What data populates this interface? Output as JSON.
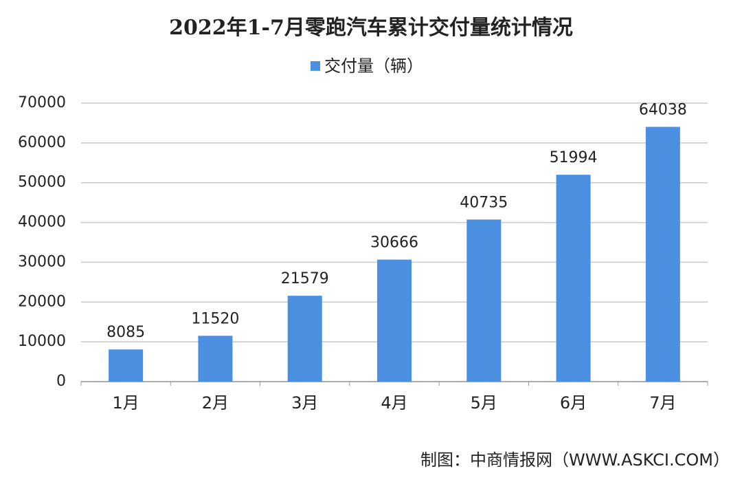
{
  "chart_data": {
    "type": "bar",
    "title": "2022年1-7月零跑汽车累计交付量统计情况",
    "categories": [
      "1月",
      "2月",
      "3月",
      "4月",
      "5月",
      "6月",
      "7月"
    ],
    "series": [
      {
        "name": "交付量（辆）",
        "color": "#4a8fe0",
        "values": [
          8085,
          11520,
          21579,
          30666,
          40735,
          51994,
          64038
        ]
      }
    ],
    "ylim": [
      0,
      70000
    ],
    "yticks": [
      0,
      10000,
      20000,
      30000,
      40000,
      50000,
      60000,
      70000
    ],
    "grid": true,
    "legend": "top",
    "source": "制图：中商情报网（WWW.ASKCI.COM）"
  }
}
